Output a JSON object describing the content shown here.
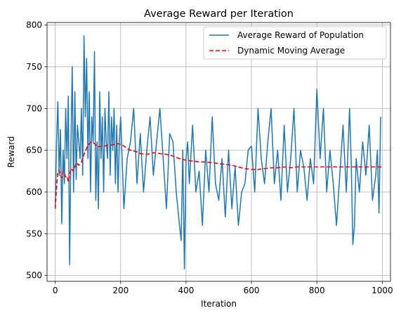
{
  "chart_data": {
    "type": "line",
    "title": "Average Reward per Iteration",
    "xlabel": "Iteration",
    "ylabel": "Reward",
    "xlim": [
      -25,
      1025
    ],
    "ylim": [
      493,
      803
    ],
    "xticks": [
      0,
      200,
      400,
      600,
      800,
      1000
    ],
    "yticks": [
      500,
      550,
      600,
      650,
      700,
      750,
      800
    ],
    "grid": true,
    "legend_position": "top-right",
    "series": [
      {
        "name": "Average Reward of Population",
        "color": "#1f77b4",
        "style": "solid",
        "x": [
          0,
          4,
          8,
          12,
          16,
          20,
          24,
          28,
          32,
          36,
          40,
          44,
          48,
          52,
          56,
          60,
          64,
          68,
          72,
          76,
          80,
          84,
          88,
          92,
          96,
          100,
          104,
          108,
          112,
          116,
          120,
          124,
          128,
          132,
          136,
          140,
          144,
          148,
          152,
          156,
          160,
          164,
          168,
          172,
          176,
          180,
          184,
          188,
          192,
          196,
          200,
          210,
          220,
          230,
          240,
          250,
          260,
          270,
          280,
          290,
          300,
          310,
          320,
          330,
          340,
          350,
          360,
          370,
          380,
          385,
          390,
          395,
          400,
          405,
          410,
          420,
          430,
          440,
          450,
          460,
          470,
          480,
          490,
          500,
          510,
          520,
          530,
          540,
          550,
          560,
          570,
          580,
          590,
          600,
          610,
          620,
          630,
          640,
          650,
          660,
          670,
          680,
          690,
          700,
          710,
          720,
          730,
          740,
          750,
          760,
          770,
          780,
          790,
          800,
          810,
          820,
          830,
          840,
          850,
          860,
          870,
          880,
          890,
          900,
          905,
          910,
          915,
          920,
          925,
          930,
          940,
          950,
          960,
          970,
          980,
          985,
          990,
          995
        ],
        "y": [
          580,
          660,
          708,
          620,
          675,
          562,
          650,
          610,
          700,
          640,
          715,
          513,
          655,
          750,
          600,
          720,
          615,
          680,
          660,
          640,
          700,
          620,
          787,
          690,
          760,
          640,
          720,
          600,
          690,
          660,
          768,
          590,
          660,
          580,
          720,
          640,
          690,
          600,
          700,
          660,
          640,
          720,
          620,
          690,
          650,
          700,
          610,
          680,
          600,
          660,
          690,
          580,
          640,
          660,
          700,
          610,
          670,
          600,
          650,
          690,
          620,
          660,
          700,
          640,
          580,
          670,
          660,
          600,
          560,
          542,
          650,
          508,
          640,
          660,
          610,
          680,
          600,
          625,
          560,
          650,
          600,
          690,
          610,
          590,
          640,
          570,
          650,
          580,
          630,
          560,
          600,
          610,
          650,
          655,
          600,
          700,
          640,
          610,
          660,
          700,
          610,
          650,
          590,
          680,
          600,
          640,
          700,
          600,
          650,
          630,
          590,
          640,
          610,
          723,
          640,
          700,
          600,
          650,
          610,
          560,
          620,
          680,
          600,
          700,
          636,
          537,
          560,
          640,
          620,
          600,
          660,
          620,
          680,
          590,
          620,
          650,
          575,
          690
        ]
      },
      {
        "name": "Dynamic Moving Average",
        "color": "#ff0000",
        "style": "dashed",
        "x": [
          0,
          4,
          8,
          12,
          16,
          20,
          24,
          28,
          32,
          36,
          40,
          48,
          56,
          64,
          72,
          80,
          90,
          100,
          110,
          120,
          130,
          140,
          150,
          160,
          170,
          180,
          190,
          200,
          210,
          220,
          230,
          240,
          250,
          260,
          280,
          300,
          320,
          340,
          360,
          380,
          400,
          420,
          440,
          460,
          480,
          500,
          520,
          540,
          560,
          580,
          600,
          620,
          640,
          660,
          680,
          700,
          720,
          740,
          760,
          780,
          800,
          820,
          840,
          860,
          880,
          900,
          920,
          940,
          960,
          980,
          1000
        ],
        "y": [
          580,
          605,
          625,
          626,
          620,
          617,
          625,
          622,
          618,
          619,
          612,
          628,
          625,
          635,
          632,
          636,
          647,
          656,
          660,
          658,
          654,
          655,
          655,
          656,
          656,
          657,
          658,
          657,
          655,
          652,
          650,
          649,
          648,
          646,
          645,
          647,
          646,
          645,
          643,
          640,
          638,
          637,
          636,
          636,
          635,
          634,
          633,
          632,
          630,
          628,
          627,
          627,
          628,
          629,
          629,
          630,
          629,
          630,
          630,
          630,
          630,
          630,
          630,
          630,
          630,
          630,
          630,
          630,
          630,
          630,
          630
        ]
      }
    ]
  }
}
